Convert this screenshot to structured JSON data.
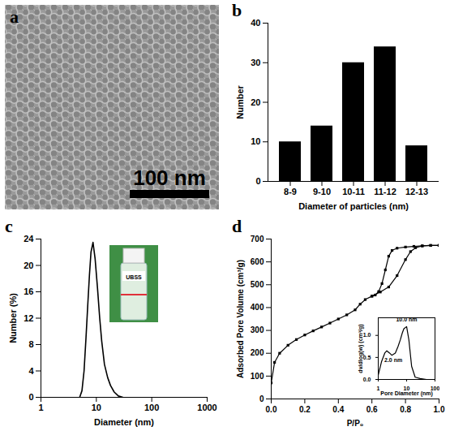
{
  "chart_data": [
    {
      "type": "image",
      "panel_label": "a",
      "scale_bar": "100 nm"
    },
    {
      "type": "bar",
      "panel_label": "b",
      "x_label": "Diameter of particles (nm)",
      "y_label": "Number",
      "categories": [
        "8-9",
        "9-10",
        "10-11",
        "11-12",
        "12-13"
      ],
      "values": [
        10,
        14,
        30,
        34,
        9
      ],
      "color": "#000000",
      "ylim": [
        0,
        40
      ],
      "yticks": [
        0,
        10,
        20,
        30,
        40
      ]
    },
    {
      "type": "line",
      "panel_label": "c",
      "x_label": "Diameter (nm)",
      "y_label": "Number (%)",
      "log": "x",
      "x": [
        5,
        5.5,
        6,
        6.5,
        7,
        7.5,
        8,
        8.7,
        9.5,
        10.5,
        11.5,
        12.5,
        14,
        16,
        18,
        21,
        25,
        30
      ],
      "values": [
        0,
        1,
        4,
        9,
        14,
        18.5,
        22,
        23.5,
        21,
        16.5,
        12,
        8.5,
        5,
        3,
        1.8,
        0.8,
        0.2,
        0
      ],
      "color": "#000000",
      "xlim": [
        1,
        1000
      ],
      "xticks": [
        1,
        10,
        100,
        1000
      ],
      "ylim": [
        0,
        24
      ],
      "yticks": [
        0,
        4,
        8,
        12,
        16,
        20,
        24
      ],
      "photo_label": "UBSS"
    },
    {
      "type": "line",
      "panel_label": "d",
      "x_label": "P/P₀",
      "y_label": "Adsorbed Pore Volume (cm³/g)",
      "series": [
        {
          "color": "#000000",
          "marker": "square",
          "x": [
            0,
            0.02,
            0.05,
            0.1,
            0.15,
            0.2,
            0.25,
            0.3,
            0.35,
            0.4,
            0.45,
            0.5,
            0.53,
            0.56,
            0.6,
            0.65,
            0.7,
            0.75,
            0.8,
            0.83,
            0.86,
            0.9,
            0.95,
            1.0
          ],
          "values": [
            70,
            160,
            200,
            235,
            260,
            280,
            298,
            315,
            332,
            350,
            368,
            390,
            415,
            435,
            450,
            468,
            490,
            540,
            610,
            645,
            662,
            670,
            672,
            672
          ]
        },
        {
          "color": "#000000",
          "marker": "square",
          "x": [
            1.0,
            0.95,
            0.9,
            0.85,
            0.8,
            0.75,
            0.72,
            0.7,
            0.68,
            0.66,
            0.64,
            0.62,
            0.6
          ],
          "values": [
            672,
            672,
            670,
            668,
            665,
            660,
            650,
            625,
            565,
            505,
            470,
            455,
            450
          ]
        }
      ],
      "xlim": [
        0,
        1
      ],
      "xticks": [
        {
          "value": 0,
          "label": "0.0"
        },
        0.2,
        0.4,
        0.6,
        0.8,
        {
          "value": 1,
          "label": "1.0"
        }
      ],
      "ylim": [
        0,
        700
      ],
      "yticks": [
        0,
        100,
        200,
        300,
        400,
        500,
        600,
        700
      ],
      "inset": {
        "type": "line",
        "log": "x",
        "x_label": "Pore Diameter (nm)",
        "y_label": "dv/dlog(w) (cm³/g)",
        "x": [
          1,
          1.3,
          1.7,
          2,
          2.5,
          3,
          4,
          5,
          6,
          7,
          8,
          10,
          12,
          15,
          20,
          30,
          50
        ],
        "values": [
          0.1,
          0.4,
          0.6,
          0.65,
          0.6,
          0.55,
          0.6,
          0.75,
          0.9,
          1.05,
          1.15,
          1.2,
          0.9,
          0.3,
          0.05,
          0.02,
          0
        ],
        "color": "#000000",
        "xlim": [
          1,
          100
        ],
        "xticks": [
          1,
          10,
          100
        ],
        "ylim": [
          0,
          1.4
        ],
        "yticks": [
          {
            "value": 0,
            "label": "0.0"
          },
          0.5,
          {
            "value": 1,
            "label": "1.0"
          }
        ],
        "annotations": [
          {
            "text": "10.0 nm",
            "x": 10,
            "y": 1.2
          },
          {
            "text": "2.0 nm",
            "x": 2,
            "y": 0.65
          }
        ]
      }
    }
  ]
}
